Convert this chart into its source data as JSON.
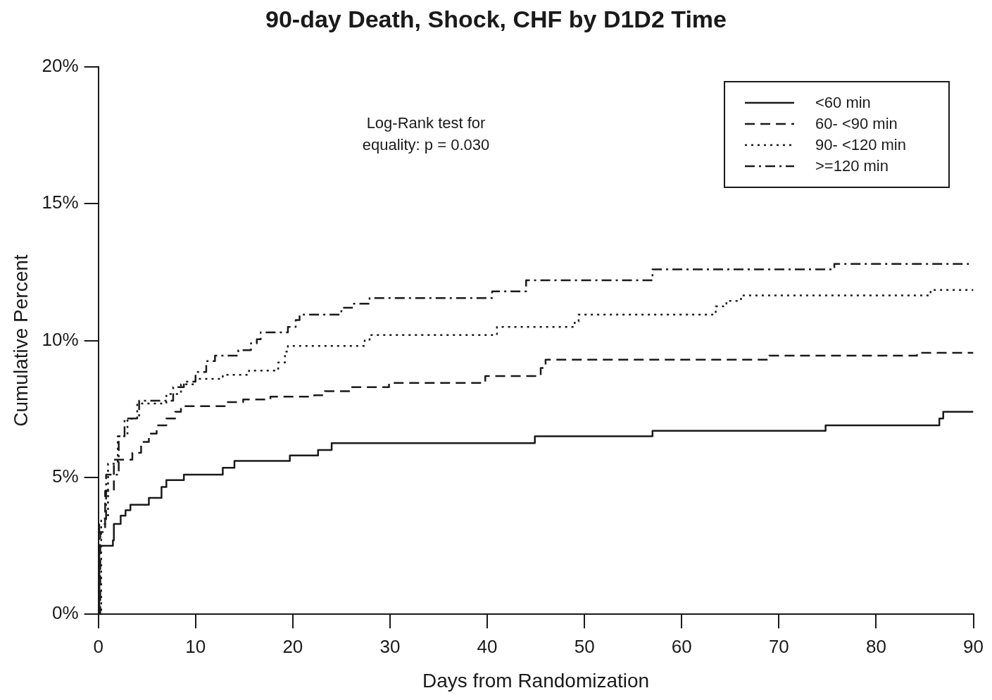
{
  "chart_data": {
    "type": "step",
    "title": "90-day Death, Shock, CHF by D1D2 Time",
    "xlabel": "Days from Randomization",
    "ylabel": "Cumulative Percent",
    "annotations": [
      "Log-Rank test for equality: p = 0.030"
    ],
    "xlim": [
      0,
      90
    ],
    "xticks": [
      0,
      10,
      20,
      30,
      40,
      50,
      60,
      70,
      80,
      90
    ],
    "ylim": [
      0,
      20
    ],
    "yticks": [
      {
        "value": 0,
        "label": "0%"
      },
      {
        "value": 5,
        "label": "5%"
      },
      {
        "value": 10,
        "label": "10%"
      },
      {
        "value": 15,
        "label": "15%"
      },
      {
        "value": 20,
        "label": "20%"
      }
    ],
    "grid": false,
    "legend": "top right",
    "marker": "none",
    "series": [
      {
        "name": "<60 min",
        "color": "#1a1a1a",
        "line_style": "solid",
        "x": [
          0,
          0.1,
          1.5,
          1.6,
          2.3,
          2.8,
          3.3,
          5.2,
          6.5,
          7.0,
          8.8,
          12.8,
          14.0,
          19.7,
          22.6,
          24.0,
          44.9,
          57.0,
          74.8,
          86.5,
          86.9,
          90
        ],
        "values": [
          0,
          2.5,
          2.7,
          3.3,
          3.6,
          3.8,
          4.0,
          4.25,
          4.65,
          4.9,
          5.1,
          5.35,
          5.6,
          5.8,
          6.0,
          6.25,
          6.5,
          6.7,
          6.9,
          7.15,
          7.4,
          7.4
        ]
      },
      {
        "name": "60- <90 min",
        "color": "#1a1a1a",
        "line_style": "dashed",
        "x": [
          0,
          0.2,
          0.7,
          1.6,
          3.5,
          4.4,
          5.2,
          6.0,
          7.0,
          7.9,
          8.5,
          13.0,
          14.9,
          17.7,
          22.2,
          23.3,
          26.0,
          29.9,
          39.8,
          45.5,
          46.0,
          69.0,
          84.2,
          90
        ],
        "values": [
          0,
          3.0,
          4.5,
          5.65,
          5.9,
          6.3,
          6.6,
          6.9,
          7.15,
          7.4,
          7.6,
          7.75,
          7.85,
          7.95,
          8.0,
          8.15,
          8.3,
          8.45,
          8.7,
          9.0,
          9.3,
          9.45,
          9.55,
          9.55
        ]
      },
      {
        "name": "90- <120 min",
        "color": "#1a1a1a",
        "line_style": "dotted",
        "x": [
          0,
          0.3,
          1.0,
          2.0,
          3.0,
          4.0,
          7.0,
          8.5,
          10.0,
          12.8,
          15.5,
          18.5,
          19.2,
          19.5,
          27.4,
          27.9,
          41.0,
          49.0,
          49.4,
          63.5,
          64.6,
          66.1,
          85.6,
          90
        ],
        "values": [
          0,
          3.5,
          5.5,
          6.5,
          7.15,
          7.7,
          8.05,
          8.4,
          8.6,
          8.75,
          8.9,
          9.2,
          9.6,
          9.8,
          10.0,
          10.2,
          10.5,
          10.7,
          10.95,
          11.25,
          11.45,
          11.65,
          11.85,
          11.85
        ]
      },
      {
        "name": ">=120 min",
        "color": "#1a1a1a",
        "line_style": "dashdot",
        "x": [
          0,
          0.1,
          0.8,
          2.1,
          2.7,
          4.2,
          7.7,
          8.8,
          10.0,
          11.1,
          12.0,
          14.4,
          15.7,
          16.3,
          16.7,
          19.5,
          20.3,
          20.7,
          25.0,
          26.1,
          27.9,
          40.5,
          44.0,
          57.0,
          75.7,
          90
        ],
        "values": [
          0,
          3.3,
          5.1,
          6.5,
          7.15,
          7.8,
          8.3,
          8.5,
          8.85,
          9.25,
          9.45,
          9.65,
          9.9,
          10.05,
          10.3,
          10.5,
          10.75,
          10.95,
          11.2,
          11.35,
          11.55,
          11.8,
          12.2,
          12.6,
          12.8,
          12.8
        ]
      }
    ]
  }
}
